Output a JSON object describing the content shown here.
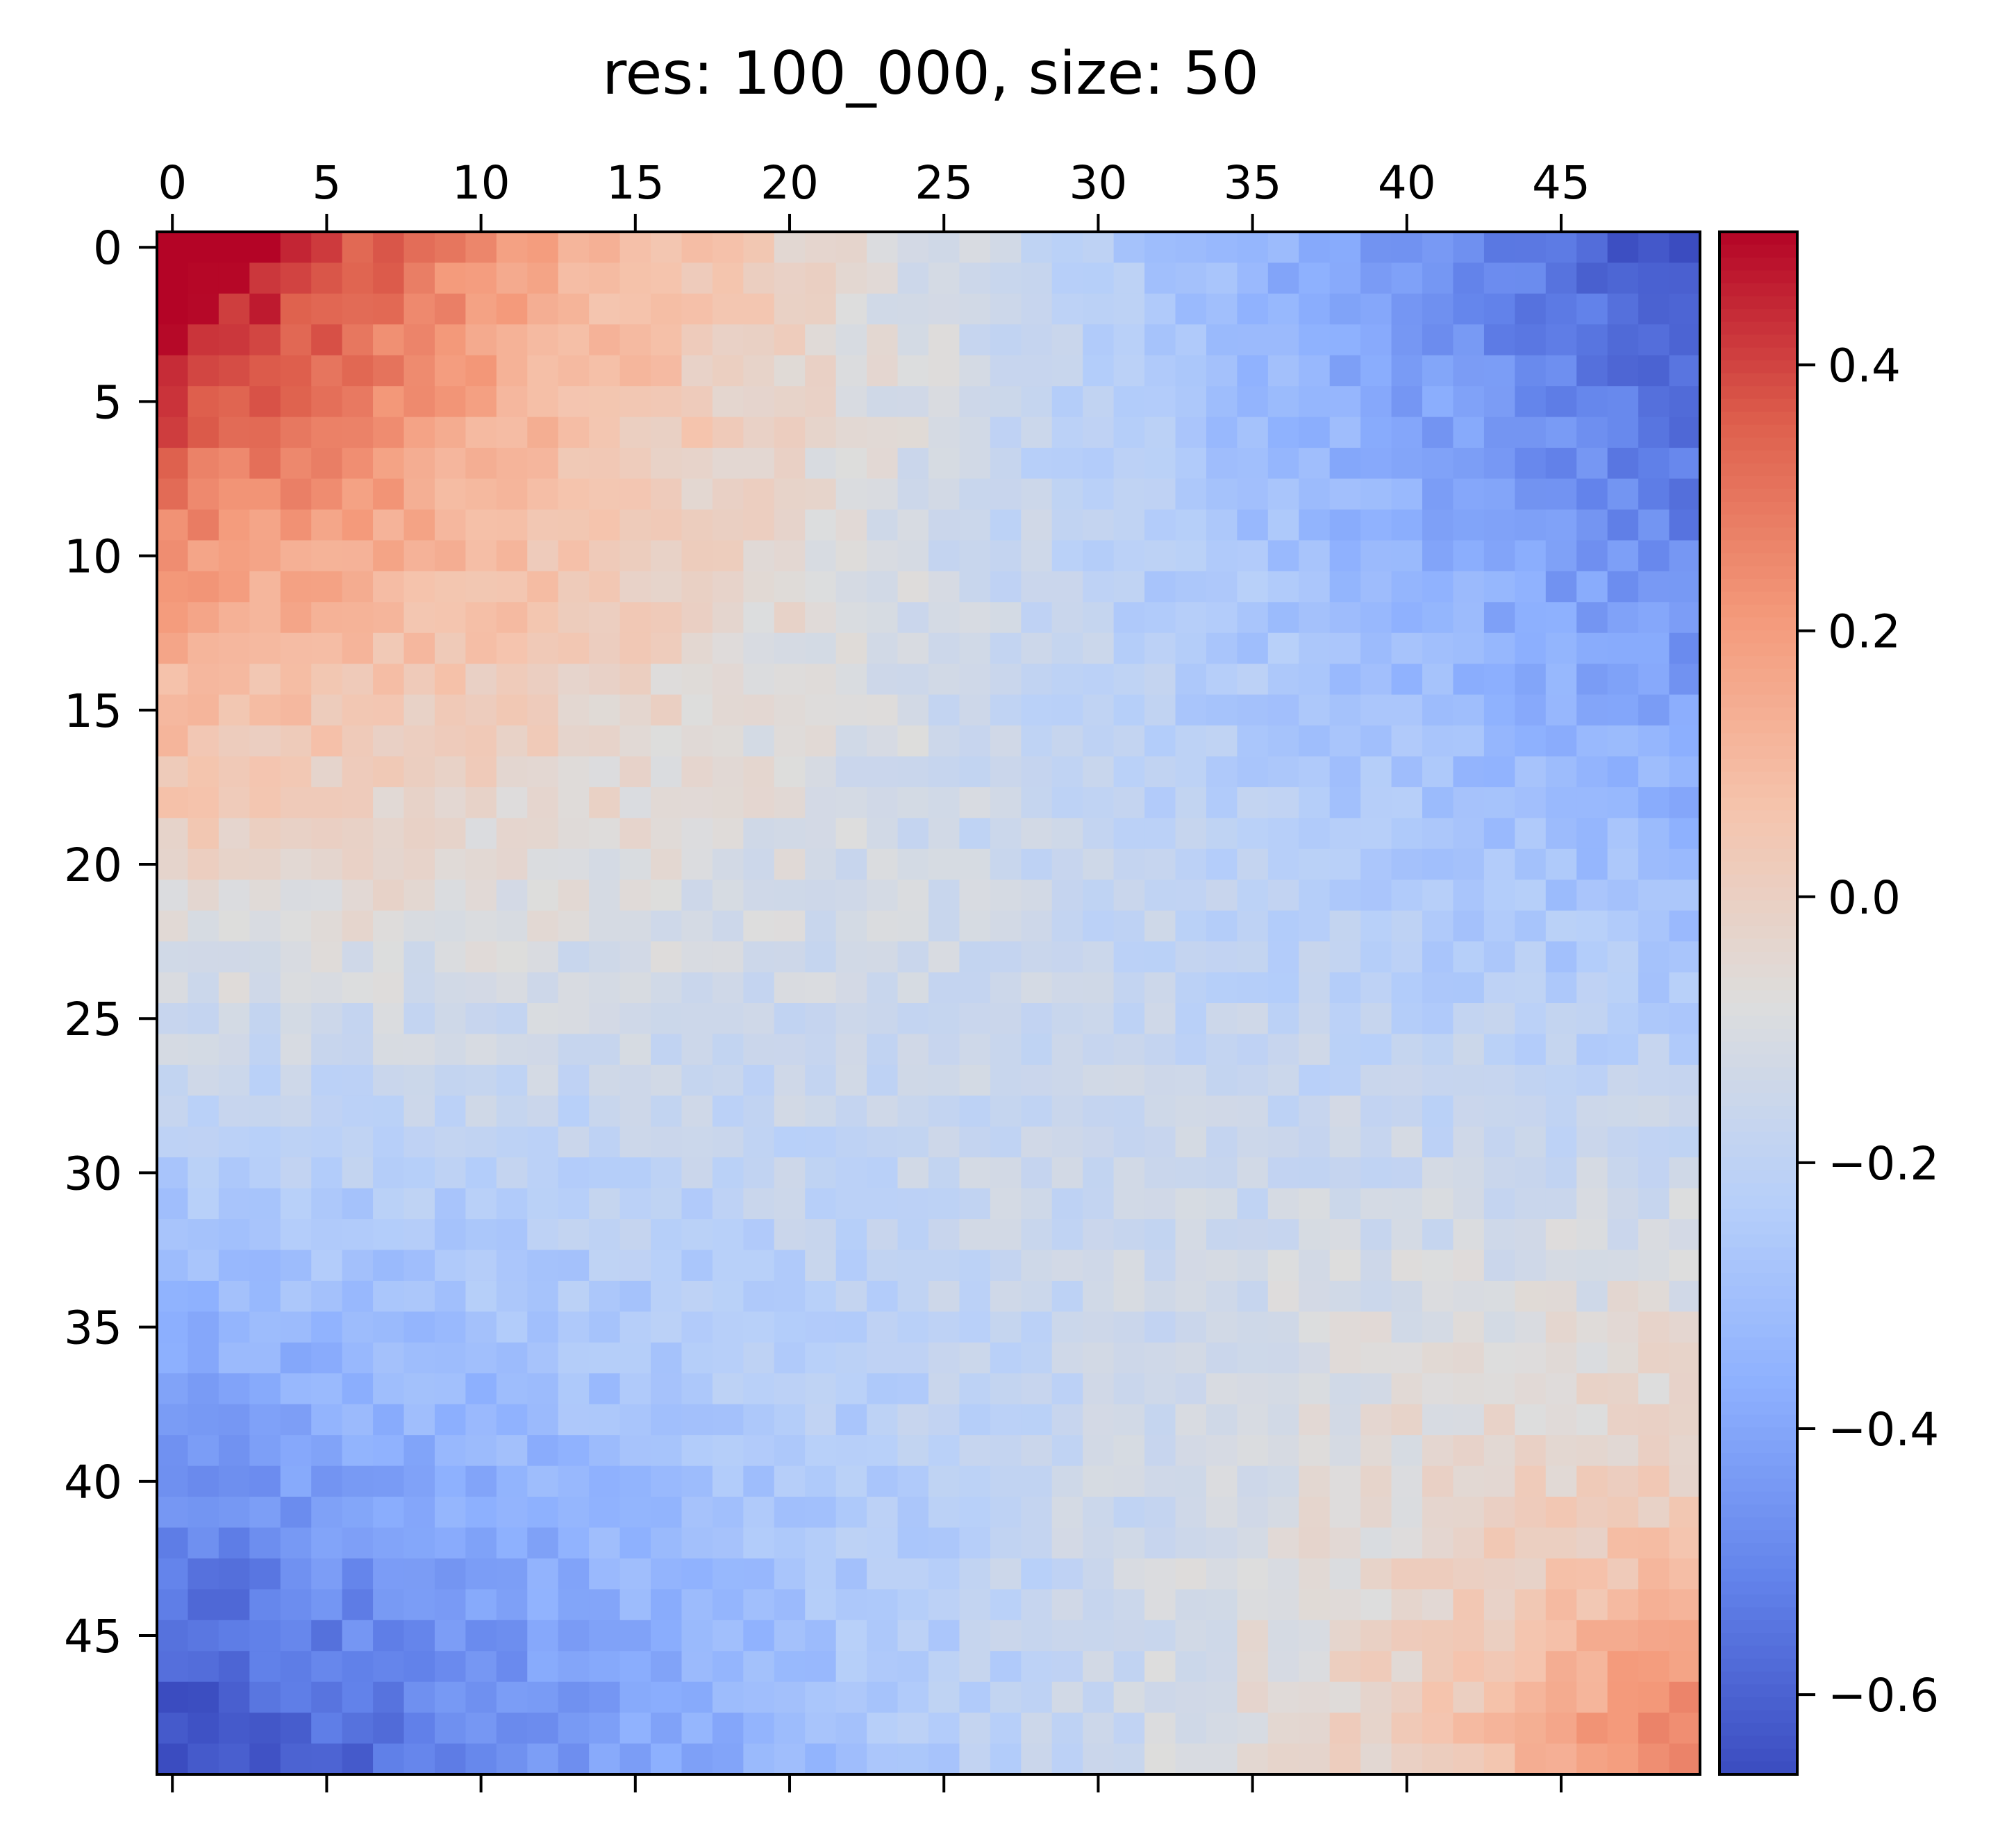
{
  "chart_data": {
    "type": "heatmap",
    "title": "res: 100_000, size: 50",
    "rows": 50,
    "cols": 50,
    "x_ticks": [
      0,
      5,
      10,
      15,
      20,
      25,
      30,
      35,
      40,
      45
    ],
    "y_ticks": [
      0,
      5,
      10,
      15,
      20,
      25,
      30,
      35,
      40,
      45
    ],
    "colorbar": {
      "colormap": "coolwarm",
      "vmin": -0.66,
      "vmax": 0.5,
      "ticks": [
        0.4,
        0.2,
        0.0,
        -0.2,
        -0.4,
        -0.6
      ],
      "tick_labels": [
        "0.4",
        "0.2",
        "0.0",
        "−0.2",
        "−0.4",
        "−0.6"
      ]
    },
    "value_model": {
      "description": "approximate cell values v(i,j) for row i, column j",
      "max_at_origin": 0.5,
      "top_left_corner": 0.42,
      "top_right_corner": -0.6,
      "bottom_left_corner": -0.62,
      "bottom_right_corner": 0.15,
      "noise_amplitude": 0.05
    }
  }
}
